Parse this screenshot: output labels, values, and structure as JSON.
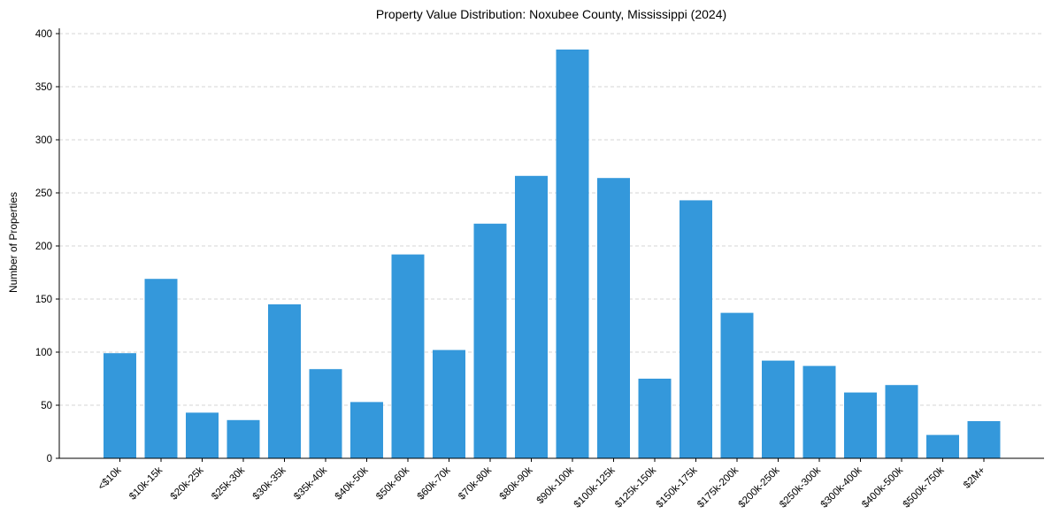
{
  "chart_data": {
    "type": "bar",
    "title": "Property Value Distribution: Noxubee County, Mississippi (2024)",
    "xlabel": "",
    "ylabel": "Number of Properties",
    "ylim": [
      0,
      405
    ],
    "yticks": [
      0,
      50,
      100,
      150,
      200,
      250,
      300,
      350,
      400
    ],
    "grid": "y, dashed",
    "bar_color": "#3498db",
    "categories": [
      "<$10k",
      "$10k-15k",
      "$20k-25k",
      "$25k-30k",
      "$30k-35k",
      "$35k-40k",
      "$40k-50k",
      "$50k-60k",
      "$60k-70k",
      "$70k-80k",
      "$80k-90k",
      "$90k-100k",
      "$100k-125k",
      "$125k-150k",
      "$150k-175k",
      "$175k-200k",
      "$200k-250k",
      "$250k-300k",
      "$300k-400k",
      "$400k-500k",
      "$500k-750k",
      "$2M+"
    ],
    "values": [
      99,
      169,
      43,
      36,
      145,
      84,
      53,
      192,
      102,
      221,
      266,
      385,
      264,
      75,
      243,
      137,
      92,
      87,
      62,
      69,
      22,
      35
    ]
  }
}
